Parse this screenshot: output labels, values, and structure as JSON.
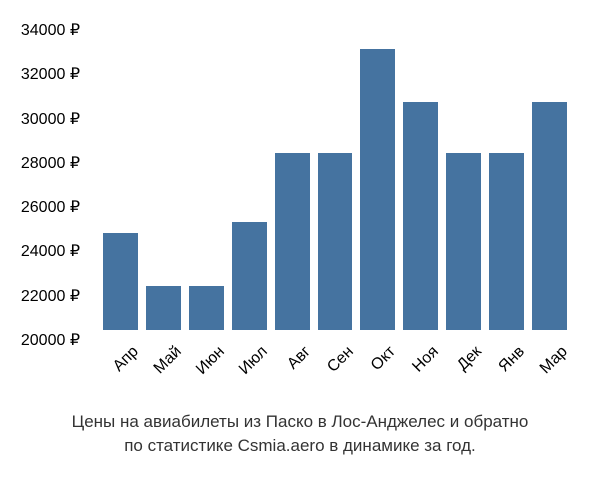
{
  "chart": {
    "type": "bar",
    "categories": [
      "Апр",
      "Май",
      "Июн",
      "Июл",
      "Авг",
      "Сен",
      "Окт",
      "Ноя",
      "Дек",
      "Янв",
      "Мар"
    ],
    "values": [
      24400,
      22000,
      22000,
      24900,
      28000,
      28000,
      32700,
      30300,
      28000,
      28000,
      30300
    ],
    "bar_color": "#4573a0",
    "ylim": [
      20000,
      34000
    ],
    "ytick_step": 2000,
    "ytick_labels": [
      "20000 ₽",
      "22000 ₽",
      "24000 ₽",
      "26000 ₽",
      "28000 ₽",
      "30000 ₽",
      "32000 ₽",
      "34000 ₽"
    ],
    "ytick_values": [
      20000,
      22000,
      24000,
      26000,
      28000,
      30000,
      32000,
      34000
    ],
    "background_color": "#ffffff",
    "axis_fontsize": 16,
    "caption_fontsize": 17,
    "caption_line1": "Цены на авиабилеты из Паско в Лос-Анджелес и обратно",
    "caption_line2": "по статистике Csmia.aero в динамике за год.",
    "x_label_rotation": -45
  }
}
